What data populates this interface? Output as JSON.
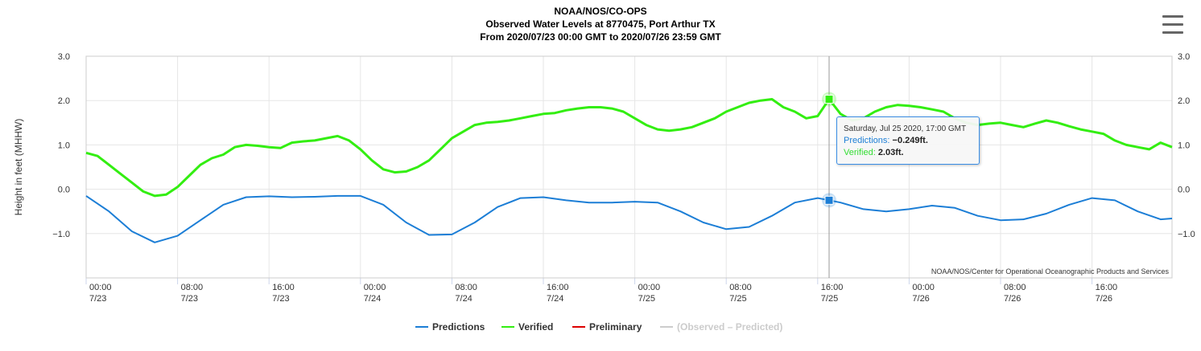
{
  "title": {
    "line1": "NOAA/NOS/CO-OPS",
    "line2": "Observed Water Levels at 8770475, Port Arthur TX",
    "line3": "From 2020/07/23 00:00 GMT to 2020/07/26 23:59 GMT"
  },
  "menu": {
    "icon": "hamburger-menu-icon"
  },
  "credits": "NOAA/NOS/Center for Operational Oceanographic Products and Services",
  "tooltip": {
    "date": "Saturday, Jul 25 2020, 17:00 GMT",
    "predictions_label": "Predictions:",
    "predictions_value": "−0.249ft.",
    "verified_label": "Verified:",
    "verified_value": "2.03ft."
  },
  "legend": [
    {
      "name": "Predictions",
      "color": "#1c7ed6",
      "visible": true
    },
    {
      "name": "Verified",
      "color": "#33ee11",
      "visible": true
    },
    {
      "name": "Preliminary",
      "color": "#dd0000",
      "visible": true
    },
    {
      "name": "(Observed – Predicted)",
      "color": "#cccccc",
      "visible": false
    }
  ],
  "chart_data": {
    "type": "line",
    "ylabel": "Height in feet (MHHW)",
    "ylim": [
      -2.0,
      3.0
    ],
    "y_ticks": [
      "3.0",
      "2.0",
      "1.0",
      "0.0",
      "−1.0"
    ],
    "y_tick_values": [
      3,
      2,
      1,
      0,
      -1
    ],
    "x_unit": "hours since 2020/07/23 00:00 GMT",
    "xlim": [
      0,
      95
    ],
    "x_ticks": [
      {
        "hour": 0,
        "time": "00:00",
        "date": "7/23"
      },
      {
        "hour": 8,
        "time": "08:00",
        "date": "7/23"
      },
      {
        "hour": 16,
        "time": "16:00",
        "date": "7/23"
      },
      {
        "hour": 24,
        "time": "00:00",
        "date": "7/24"
      },
      {
        "hour": 32,
        "time": "08:00",
        "date": "7/24"
      },
      {
        "hour": 40,
        "time": "16:00",
        "date": "7/24"
      },
      {
        "hour": 48,
        "time": "00:00",
        "date": "7/25"
      },
      {
        "hour": 56,
        "time": "08:00",
        "date": "7/25"
      },
      {
        "hour": 64,
        "time": "16:00",
        "date": "7/25"
      },
      {
        "hour": 72,
        "time": "00:00",
        "date": "7/26"
      },
      {
        "hour": 80,
        "time": "08:00",
        "date": "7/26"
      },
      {
        "hour": 88,
        "time": "16:00",
        "date": "7/26"
      }
    ],
    "grid": true,
    "legend_position": "bottom",
    "crosshair_hour": 65,
    "series": [
      {
        "name": "Predictions",
        "color": "#1c7ed6",
        "x": [
          0,
          2,
          4,
          6,
          8,
          10,
          12,
          14,
          16,
          18,
          20,
          22,
          24,
          26,
          28,
          30,
          32,
          34,
          36,
          38,
          40,
          42,
          44,
          46,
          48,
          50,
          52,
          54,
          56,
          58,
          60,
          62,
          64,
          65,
          66,
          68,
          70,
          72,
          74,
          76,
          78,
          80,
          82,
          84,
          86,
          88,
          90,
          92,
          94,
          95
        ],
        "values": [
          -0.15,
          -0.5,
          -0.95,
          -1.2,
          -1.05,
          -0.7,
          -0.35,
          -0.18,
          -0.16,
          -0.18,
          -0.17,
          -0.15,
          -0.15,
          -0.35,
          -0.75,
          -1.03,
          -1.02,
          -0.75,
          -0.4,
          -0.2,
          -0.18,
          -0.25,
          -0.3,
          -0.3,
          -0.28,
          -0.3,
          -0.5,
          -0.75,
          -0.9,
          -0.85,
          -0.6,
          -0.3,
          -0.2,
          -0.249,
          -0.3,
          -0.45,
          -0.5,
          -0.45,
          -0.37,
          -0.42,
          -0.6,
          -0.7,
          -0.68,
          -0.55,
          -0.35,
          -0.2,
          -0.25,
          -0.5,
          -0.68,
          -0.66
        ]
      },
      {
        "name": "Verified",
        "color": "#33ee11",
        "x": [
          0,
          1,
          2,
          3,
          4,
          5,
          6,
          7,
          8,
          9,
          10,
          11,
          12,
          13,
          14,
          15,
          16,
          17,
          18,
          19,
          20,
          21,
          22,
          23,
          24,
          25,
          26,
          27,
          28,
          29,
          30,
          31,
          32,
          33,
          34,
          35,
          36,
          37,
          38,
          39,
          40,
          41,
          42,
          43,
          44,
          45,
          46,
          47,
          48,
          49,
          50,
          51,
          52,
          53,
          54,
          55,
          56,
          57,
          58,
          59,
          60,
          61,
          62,
          63,
          64,
          65,
          66,
          67,
          68,
          69,
          70,
          71,
          72,
          73,
          74,
          75,
          76,
          77,
          78,
          79,
          80,
          81,
          82,
          83,
          84,
          85,
          86,
          87,
          88,
          89,
          90,
          91,
          92,
          93,
          94,
          95
        ],
        "values": [
          0.82,
          0.75,
          0.55,
          0.35,
          0.15,
          -0.05,
          -0.15,
          -0.12,
          0.05,
          0.3,
          0.55,
          0.7,
          0.78,
          0.95,
          1.0,
          0.98,
          0.95,
          0.93,
          1.05,
          1.08,
          1.1,
          1.15,
          1.2,
          1.1,
          0.9,
          0.65,
          0.45,
          0.38,
          0.4,
          0.5,
          0.65,
          0.9,
          1.15,
          1.3,
          1.45,
          1.5,
          1.52,
          1.55,
          1.6,
          1.65,
          1.7,
          1.72,
          1.78,
          1.82,
          1.85,
          1.85,
          1.82,
          1.75,
          1.6,
          1.45,
          1.35,
          1.32,
          1.35,
          1.4,
          1.5,
          1.6,
          1.75,
          1.85,
          1.95,
          2.0,
          2.03,
          1.85,
          1.75,
          1.6,
          1.65,
          2.03,
          1.7,
          1.55,
          1.6,
          1.75,
          1.85,
          1.9,
          1.88,
          1.85,
          1.8,
          1.75,
          1.6,
          1.5,
          1.45,
          1.48,
          1.5,
          1.45,
          1.4,
          1.48,
          1.55,
          1.5,
          1.42,
          1.35,
          1.3,
          1.25,
          1.1,
          1.0,
          0.95,
          0.9,
          1.05,
          0.95
        ]
      }
    ]
  }
}
